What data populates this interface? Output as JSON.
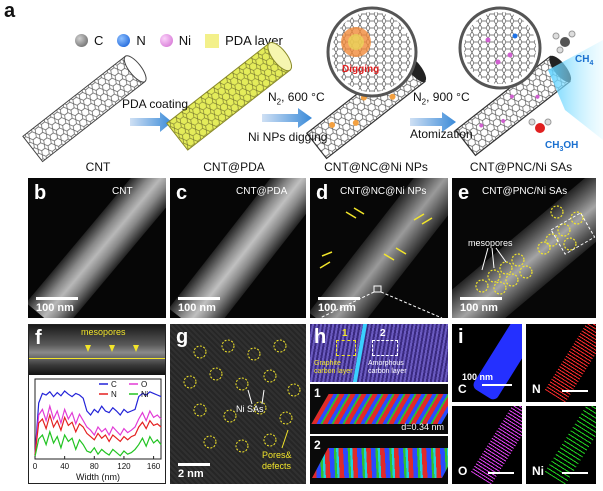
{
  "figure": {
    "panel_a": {
      "letter": "a",
      "legend": [
        {
          "label": "C",
          "color": "#8a8a8a"
        },
        {
          "label": "N",
          "color": "#1e72e6"
        },
        {
          "label": "Ni",
          "color": "#e59ae3"
        },
        {
          "label": "PDA layer",
          "color": "#f3f08a"
        }
      ],
      "steps": {
        "step1": "PDA coating",
        "step2_top": "N",
        "step2_sub": "2",
        "step2_rest": ", 600 °C",
        "step2_bottom": "Ni NPs digging",
        "step3_top": "N",
        "step3_sub": "2",
        "step3_rest": ", 900 °C",
        "step3_bottom": "Atomization",
        "digging": "Digging",
        "ch4": "CH",
        "ch4_sub": "4",
        "ch3oh": "CH",
        "ch3oh_sub": "3",
        "ch3oh_rest": "OH"
      }
    },
    "captions": [
      "CNT",
      "CNT@PDA",
      "CNT@NC@Ni NPs",
      "CNT@PNC/Ni SAs"
    ],
    "panels_b_to_e": [
      {
        "letter": "b",
        "label": "CNT",
        "scale": "100 nm"
      },
      {
        "letter": "c",
        "label": "CNT@PDA",
        "scale": "100 nm"
      },
      {
        "letter": "d",
        "label": "CNT@NC@Ni NPs",
        "scale": "100 nm"
      },
      {
        "letter": "e",
        "label": "CNT@PNC/Ni SAs",
        "scale": "100 nm",
        "annotation": "mesopores"
      }
    ],
    "panel_f": {
      "letter": "f",
      "annotation": "mesopores",
      "xlabel": "Width (nm)"
    },
    "panel_g": {
      "letter": "g",
      "sa_label": "Ni SAs",
      "pores_label": "Pores&",
      "defects_label": "defects",
      "scale": "2 nm"
    },
    "panel_h": {
      "letter": "h",
      "region1": "1",
      "region2": "2",
      "graphite_line1": "Graphite",
      "graphite_line2": "carbon layer",
      "amorphous_line1": "Amorphous",
      "amorphous_line2": "carbon layer",
      "sub1": "1",
      "sub2": "2",
      "dspacing": "d=0.34 nm"
    },
    "panel_i": {
      "letter": "i",
      "maps": [
        {
          "element": "C",
          "color": "#2430ff"
        },
        {
          "element": "N",
          "color": "#ff2a2a"
        },
        {
          "element": "O",
          "color": "#e040f0"
        },
        {
          "element": "Ni",
          "color": "#22d422"
        }
      ],
      "scale": "100 nm"
    }
  },
  "chart_data": {
    "type": "line",
    "xlabel": "Width (nm)",
    "ylabel": "",
    "xlim": [
      0,
      170
    ],
    "ylim": [
      0,
      1
    ],
    "xticks": [
      0,
      40,
      80,
      120,
      160
    ],
    "legend_position": "top-right",
    "series": [
      {
        "name": "C",
        "color": "#2323d8",
        "x": [
          0,
          5,
          10,
          15,
          20,
          25,
          30,
          35,
          40,
          45,
          50,
          55,
          60,
          65,
          70,
          75,
          80,
          85,
          90,
          95,
          100,
          105,
          110,
          115,
          120,
          125,
          130,
          135,
          140,
          145,
          150,
          155,
          160,
          165,
          170
        ],
        "y": [
          0.05,
          0.7,
          0.82,
          0.8,
          0.84,
          0.78,
          0.83,
          0.79,
          0.85,
          0.81,
          0.78,
          0.82,
          0.8,
          0.76,
          0.6,
          0.55,
          0.62,
          0.58,
          0.66,
          0.6,
          0.58,
          0.64,
          0.6,
          0.55,
          0.62,
          0.58,
          0.6,
          0.62,
          0.78,
          0.82,
          0.8,
          0.84,
          0.82,
          0.8,
          0.78
        ]
      },
      {
        "name": "O",
        "color": "#e23bd6",
        "x": [
          0,
          5,
          10,
          15,
          20,
          25,
          30,
          35,
          40,
          45,
          50,
          55,
          60,
          65,
          70,
          75,
          80,
          85,
          90,
          95,
          100,
          105,
          110,
          115,
          120,
          125,
          130,
          135,
          140,
          145,
          150,
          155,
          160,
          165,
          170
        ],
        "y": [
          0.05,
          0.55,
          0.62,
          0.48,
          0.66,
          0.5,
          0.6,
          0.45,
          0.62,
          0.5,
          0.58,
          0.44,
          0.56,
          0.48,
          0.4,
          0.36,
          0.3,
          0.4,
          0.34,
          0.38,
          0.3,
          0.4,
          0.35,
          0.3,
          0.38,
          0.33,
          0.36,
          0.4,
          0.5,
          0.58,
          0.48,
          0.6,
          0.52,
          0.55,
          0.5
        ]
      },
      {
        "name": "N",
        "color": "#e42020",
        "x": [
          0,
          5,
          10,
          15,
          20,
          25,
          30,
          35,
          40,
          45,
          50,
          55,
          60,
          65,
          70,
          75,
          80,
          85,
          90,
          95,
          100,
          105,
          110,
          115,
          120,
          125,
          130,
          135,
          140,
          145,
          150,
          155,
          160,
          165,
          170
        ],
        "y": [
          0.05,
          0.45,
          0.5,
          0.38,
          0.55,
          0.4,
          0.48,
          0.36,
          0.52,
          0.42,
          0.46,
          0.34,
          0.44,
          0.4,
          0.32,
          0.28,
          0.24,
          0.32,
          0.26,
          0.3,
          0.22,
          0.3,
          0.26,
          0.22,
          0.28,
          0.24,
          0.28,
          0.3,
          0.4,
          0.46,
          0.38,
          0.48,
          0.42,
          0.44,
          0.4
        ]
      },
      {
        "name": "Ni",
        "color": "#22c422",
        "x": [
          0,
          5,
          10,
          15,
          20,
          25,
          30,
          35,
          40,
          45,
          50,
          55,
          60,
          65,
          70,
          75,
          80,
          85,
          90,
          95,
          100,
          105,
          110,
          115,
          120,
          125,
          130,
          135,
          140,
          145,
          150,
          155,
          160,
          165,
          170
        ],
        "y": [
          0.03,
          0.25,
          0.3,
          0.18,
          0.34,
          0.2,
          0.28,
          0.14,
          0.3,
          0.22,
          0.26,
          0.12,
          0.24,
          0.18,
          0.1,
          0.08,
          0.14,
          0.06,
          0.12,
          0.08,
          0.05,
          0.12,
          0.08,
          0.04,
          0.1,
          0.06,
          0.08,
          0.12,
          0.18,
          0.26,
          0.16,
          0.28,
          0.2,
          0.24,
          0.18
        ]
      }
    ]
  }
}
